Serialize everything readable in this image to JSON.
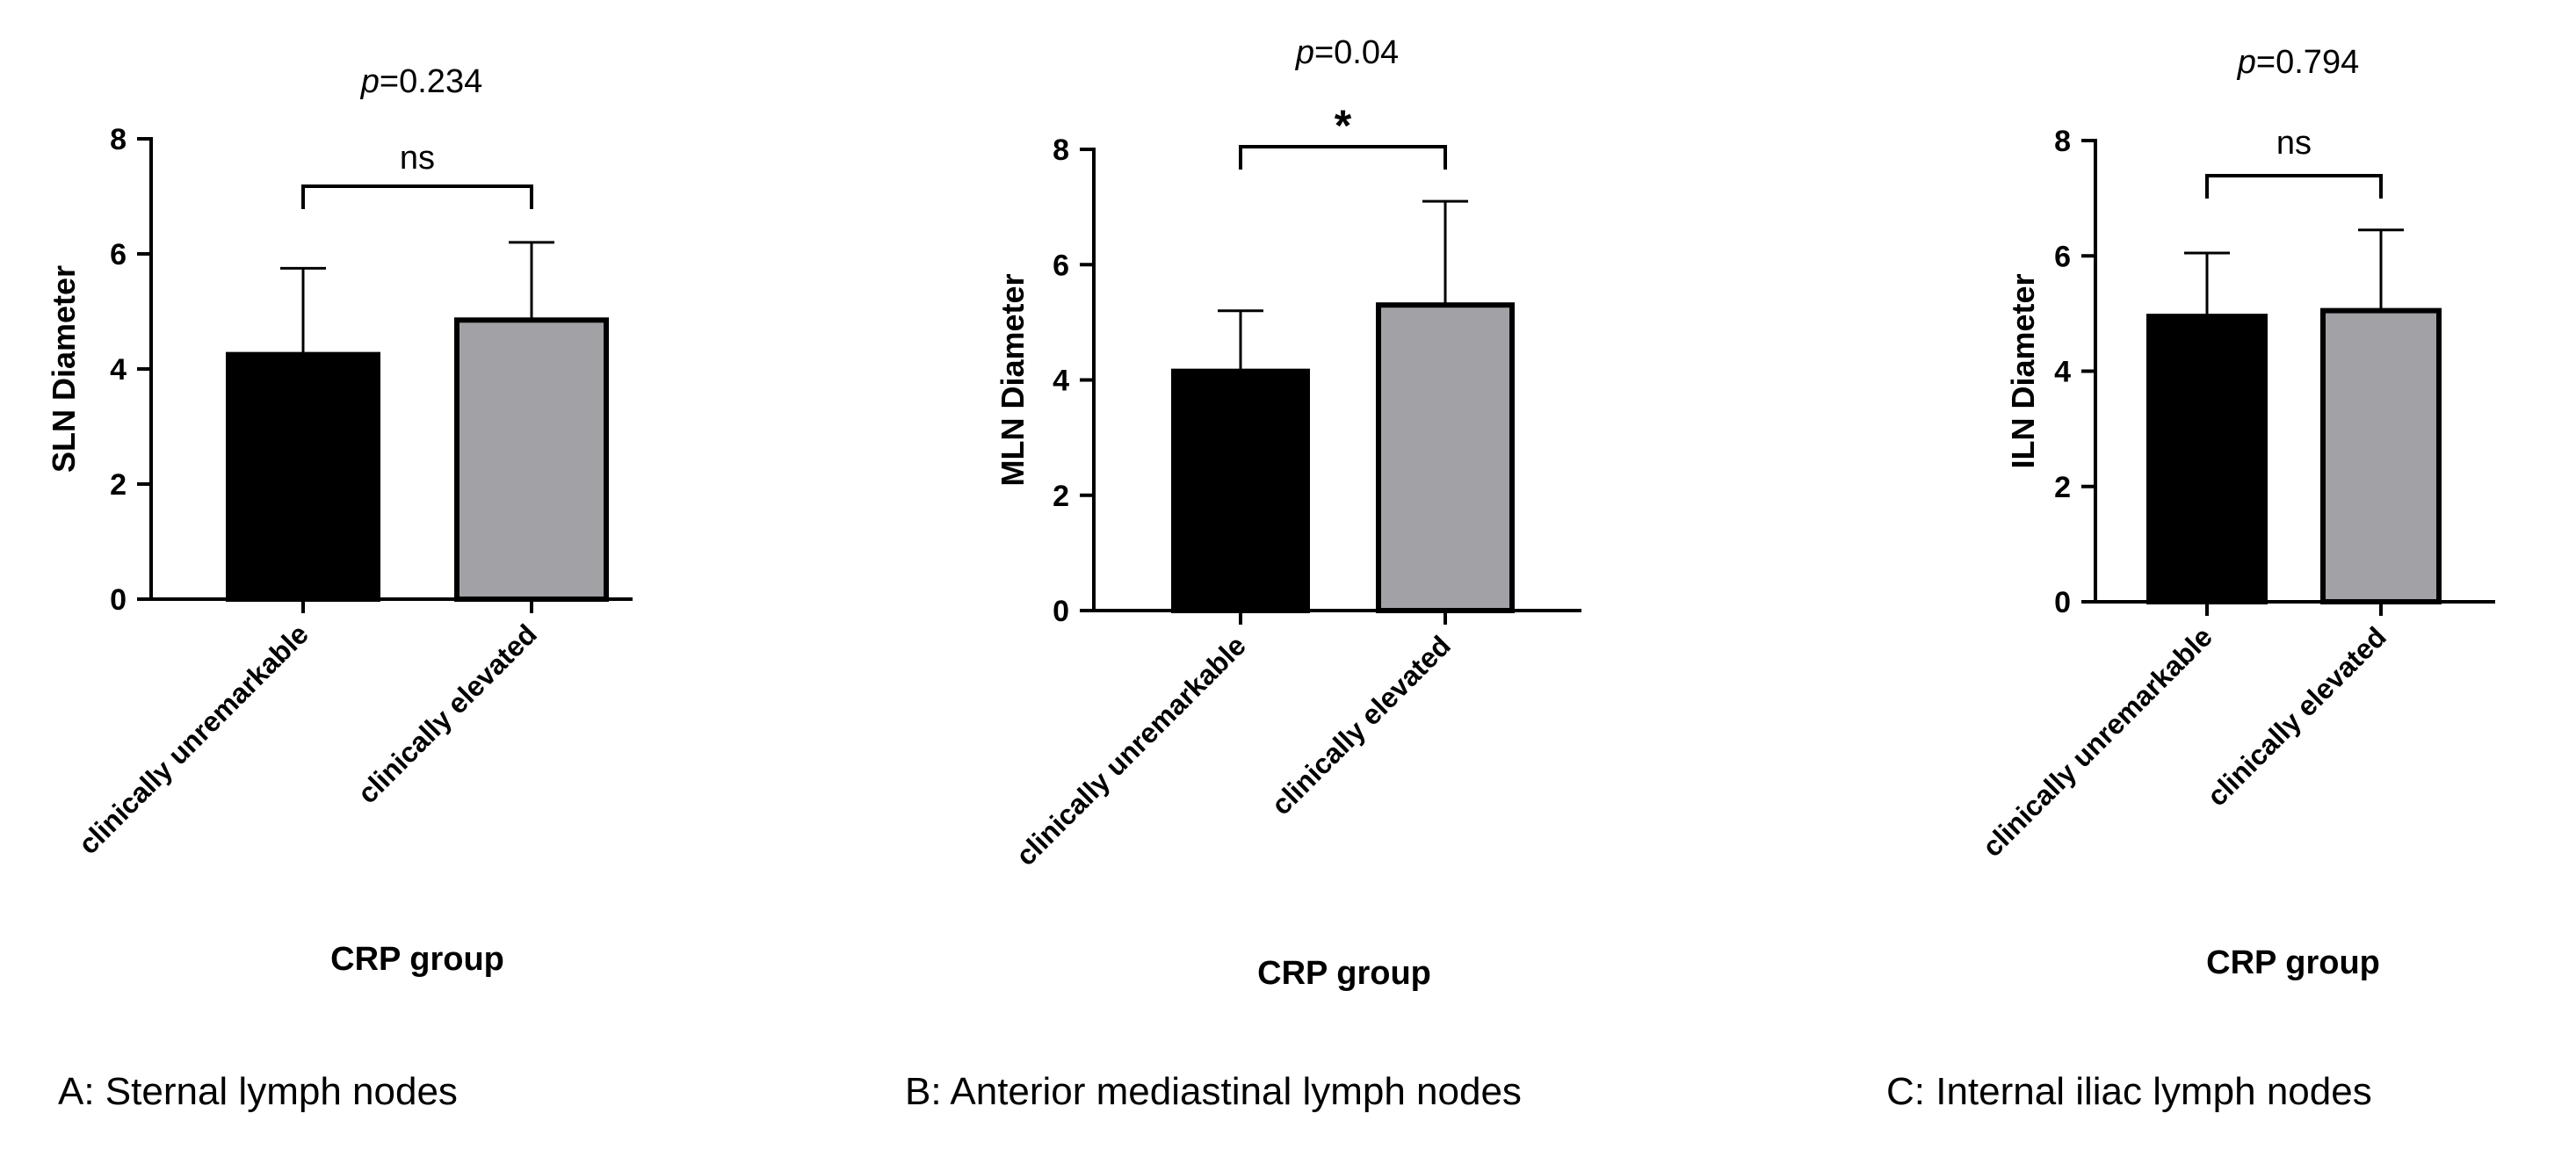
{
  "chart_data": [
    {
      "type": "bar",
      "panel_caption": "A: Sternal lymph nodes",
      "title": "p=0.234",
      "title_prefix": "p",
      "title_value": "=0.234",
      "significance": "ns",
      "xlabel": "CRP group",
      "ylabel": "SLN Diameter",
      "ylim": [
        0,
        8
      ],
      "yticks": [
        0,
        2,
        4,
        6,
        8
      ],
      "categories": [
        "clinically unremarkable",
        "clinically elevated"
      ],
      "values": [
        4.25,
        4.85
      ],
      "errors": [
        1.5,
        1.35
      ],
      "colors": [
        "#000000",
        "#a2a1a6"
      ]
    },
    {
      "type": "bar",
      "panel_caption": "B: Anterior mediastinal lymph nodes",
      "title": "p=0.04",
      "title_prefix": "p",
      "title_value": "=0.04",
      "significance": "*",
      "xlabel": "CRP group",
      "ylabel": "MLN Diameter",
      "ylim": [
        0,
        8
      ],
      "yticks": [
        0,
        2,
        4,
        6,
        8
      ],
      "categories": [
        "clinically unremarkable",
        "clinically elevated"
      ],
      "values": [
        4.15,
        5.3
      ],
      "errors": [
        1.05,
        1.8
      ],
      "colors": [
        "#000000",
        "#a2a1a6"
      ]
    },
    {
      "type": "bar",
      "panel_caption": "C: Internal iliac lymph nodes",
      "title": "p=0.794",
      "title_prefix": "p",
      "title_value": "=0.794",
      "significance": "ns",
      "xlabel": "CRP group",
      "ylabel": "ILN Diameter",
      "ylim": [
        0,
        8
      ],
      "yticks": [
        0,
        2,
        4,
        6,
        8
      ],
      "categories": [
        "clinically unremarkable",
        "clinically elevated"
      ],
      "values": [
        4.95,
        5.05
      ],
      "errors": [
        1.1,
        1.4
      ],
      "colors": [
        "#000000",
        "#a2a1a6"
      ]
    }
  ]
}
